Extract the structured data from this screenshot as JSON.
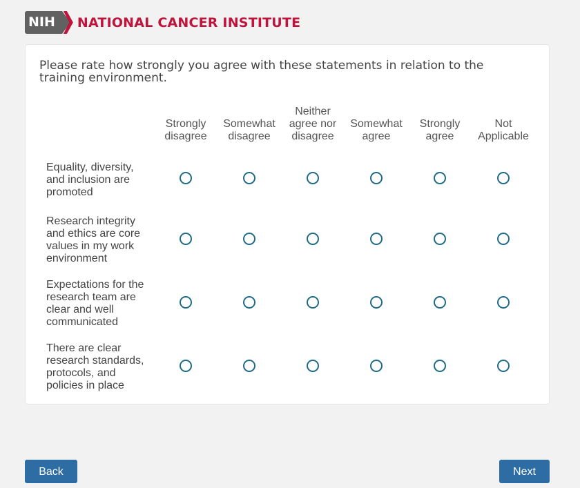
{
  "header": {
    "logo_badge": "NIH",
    "org_name": "NATIONAL CANCER INSTITUTE"
  },
  "question": "Please rate how strongly you agree with these statements in relation to the training environment.",
  "columns": [
    "Strongly disagree",
    "Somewhat disagree",
    "Neither agree nor disagree",
    "Somewhat agree",
    "Strongly agree",
    "Not Applicable"
  ],
  "rows": [
    "Equality, diversity, and inclusion are promoted",
    "Research integrity and ethics are core values in my work environment",
    "Expectations for the research team are clear and well communicated",
    "There are clear research standards, protocols, and policies in place"
  ],
  "nav": {
    "back": "Back",
    "next": "Next"
  },
  "colors": {
    "brand": "#c0143c",
    "button": "#2e6da4",
    "radio": "#1f6a87"
  }
}
